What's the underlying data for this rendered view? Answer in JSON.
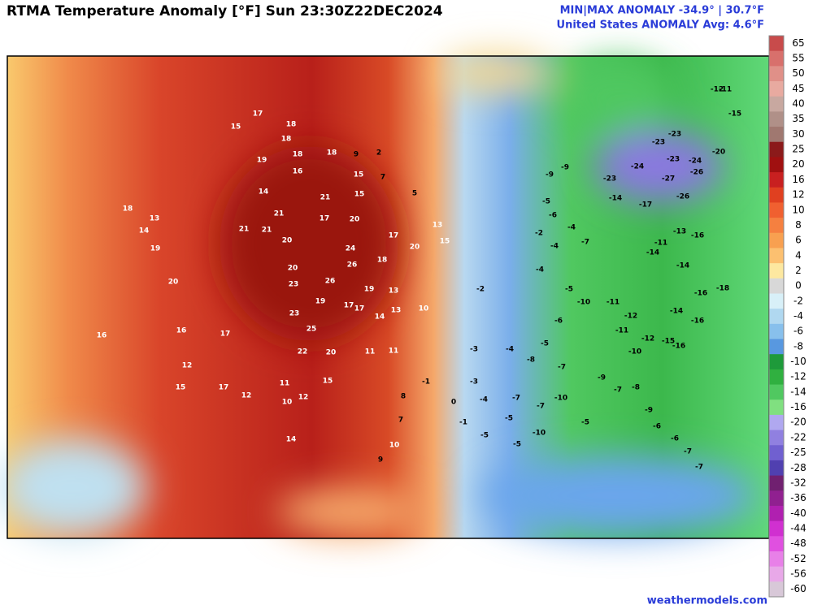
{
  "header": {
    "title": "RTMA Temperature Anomaly [°F]  Sun 23:30Z22DEC2024",
    "minmax": "MIN|MAX ANOMALY -34.9° | 30.7°F",
    "average": "United States ANOMALY Avg: 4.6°F"
  },
  "legend": {
    "levels": [
      {
        "label": 65,
        "color": "#c84b4b"
      },
      {
        "label": 55,
        "color": "#d8706c"
      },
      {
        "label": 50,
        "color": "#e09088"
      },
      {
        "label": 45,
        "color": "#e8aaa0"
      },
      {
        "label": 40,
        "color": "#c8a8a0"
      },
      {
        "label": 35,
        "color": "#b09088"
      },
      {
        "label": 30,
        "color": "#a07870"
      },
      {
        "label": 25,
        "color": "#8b1a1a"
      },
      {
        "label": 20,
        "color": "#a01010"
      },
      {
        "label": 16,
        "color": "#c82020"
      },
      {
        "label": 12,
        "color": "#e04020"
      },
      {
        "label": 10,
        "color": "#f06030"
      },
      {
        "label": 8,
        "color": "#f58040"
      },
      {
        "label": 6,
        "color": "#f8a050"
      },
      {
        "label": 4,
        "color": "#fcc070"
      },
      {
        "label": 2,
        "color": "#fde8a0"
      },
      {
        "label": 0,
        "color": "#d8d8d8"
      },
      {
        "label": -2,
        "color": "#d8f0f8"
      },
      {
        "label": -4,
        "color": "#b0d8f0"
      },
      {
        "label": -6,
        "color": "#88c0ec"
      },
      {
        "label": -8,
        "color": "#5898e0"
      },
      {
        "label": -10,
        "color": "#1e9a3a"
      },
      {
        "label": -12,
        "color": "#30b040"
      },
      {
        "label": -14,
        "color": "#50c860"
      },
      {
        "label": -16,
        "color": "#80e080"
      },
      {
        "label": -20,
        "color": "#b0a8f0"
      },
      {
        "label": -22,
        "color": "#9080e0"
      },
      {
        "label": -25,
        "color": "#7060d0"
      },
      {
        "label": -28,
        "color": "#5040b0"
      },
      {
        "label": -32,
        "color": "#702070"
      },
      {
        "label": -36,
        "color": "#902090"
      },
      {
        "label": -40,
        "color": "#b020b0"
      },
      {
        "label": -44,
        "color": "#d030d0"
      },
      {
        "label": -48,
        "color": "#e050e0"
      },
      {
        "label": -52,
        "color": "#e880e8"
      },
      {
        "label": -56,
        "color": "#e8a8e8"
      },
      {
        "label": -60,
        "color": "#d8c8d8"
      }
    ]
  },
  "stations": [
    17,
    18,
    15,
    18,
    18,
    18,
    9,
    2,
    19,
    16,
    15,
    7,
    21,
    15,
    5,
    14,
    21,
    17,
    20,
    21,
    21,
    20,
    24,
    26,
    18,
    17,
    20,
    13,
    15,
    20,
    23,
    26,
    19,
    13,
    23,
    19,
    17,
    17,
    14,
    13,
    10,
    25,
    22,
    20,
    11,
    11,
    15,
    11,
    10,
    12,
    8,
    7,
    10,
    9,
    14,
    17,
    16,
    20,
    19,
    14,
    18,
    13,
    16,
    12,
    15,
    17,
    12,
    -2,
    -2,
    -4,
    -4,
    -5,
    -10,
    -11,
    -12,
    -11,
    -12,
    -15,
    -16,
    -16,
    -14,
    -16,
    -18,
    -14,
    -11,
    -14,
    -13,
    -16,
    -17,
    -14,
    -24,
    -27,
    -23,
    -24,
    -26,
    -20,
    -23,
    -23,
    -23,
    -9,
    -9,
    -5,
    -6,
    -4,
    -7,
    -6,
    -5,
    -4,
    -8,
    -7,
    -9,
    -7,
    -8,
    -9,
    -6,
    -6,
    -7,
    -7,
    -10,
    -7,
    -7,
    -4,
    -3,
    -3,
    -5,
    -10,
    -5,
    -1,
    0,
    -1,
    -5,
    -5,
    -10,
    -26,
    -11,
    -15,
    -12
  ],
  "footer": "weathermodels.com"
}
